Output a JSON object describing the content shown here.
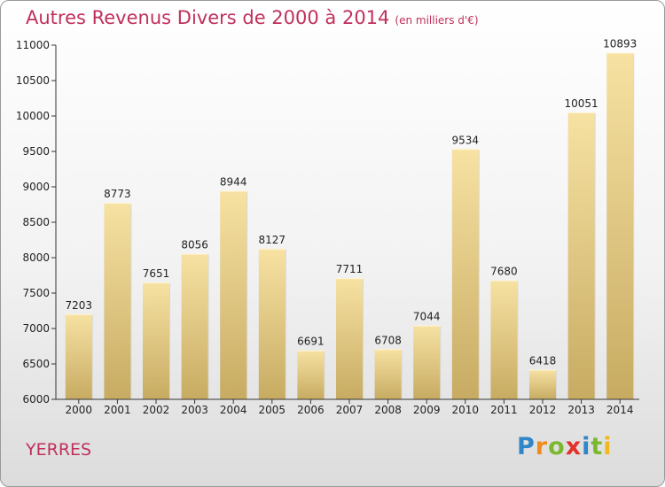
{
  "title": "Autres Revenus Divers de 2000 à 2014",
  "subtitle": "(en milliers d'€)",
  "location": "YERRES",
  "logo_letters": [
    {
      "ch": "P",
      "color": "#2f86c9"
    },
    {
      "ch": "r",
      "color": "#f08b1d"
    },
    {
      "ch": "o",
      "color": "#7cb82f"
    },
    {
      "ch": "x",
      "color": "#e2322a"
    },
    {
      "ch": "i",
      "color": "#2f86c9"
    },
    {
      "ch": "t",
      "color": "#7cb82f"
    },
    {
      "ch": "i",
      "color": "#f0b81d"
    }
  ],
  "chart_data": {
    "type": "bar",
    "categories": [
      "2000",
      "2001",
      "2002",
      "2003",
      "2004",
      "2005",
      "2006",
      "2007",
      "2008",
      "2009",
      "2010",
      "2011",
      "2012",
      "2013",
      "2014"
    ],
    "values": [
      7203,
      8773,
      7651,
      8056,
      8944,
      8127,
      6691,
      7711,
      6708,
      7044,
      9534,
      7680,
      6418,
      10051,
      10893
    ],
    "ylim": [
      6000,
      11000
    ],
    "yticks": [
      6000,
      6500,
      7000,
      7500,
      8000,
      8500,
      9000,
      9500,
      10000,
      10500,
      11000
    ],
    "grid": false,
    "bar_color": "#e8cc7e"
  }
}
